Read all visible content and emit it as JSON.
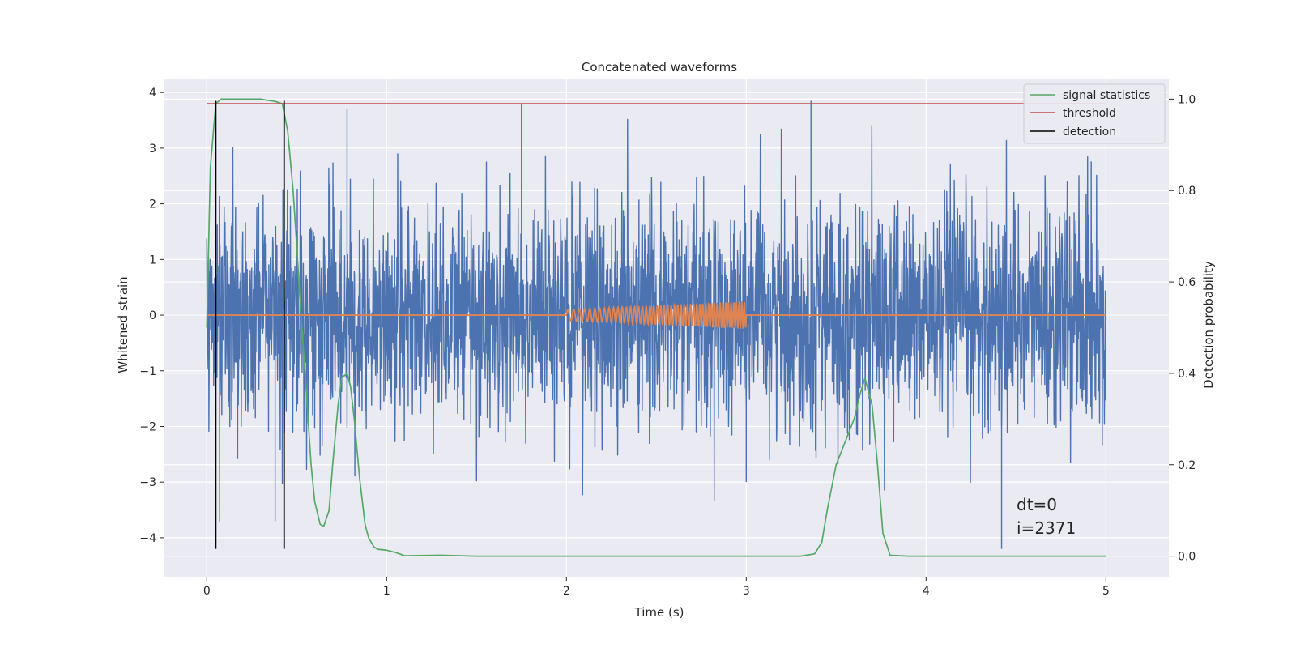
{
  "chart_data": {
    "type": "line",
    "title": "Concatenated waveforms",
    "xlabel": "Time (s)",
    "ylabel_left": "Whitened strain",
    "ylabel_right": "Detection probability",
    "xlim": [
      -0.24,
      5.35
    ],
    "ylim_left": [
      -4.7,
      4.25
    ],
    "ylim_right": [
      -0.045,
      1.045
    ],
    "xticks": [
      0,
      1,
      2,
      3,
      4,
      5
    ],
    "yticks_left": [
      -4,
      -3,
      -2,
      -1,
      0,
      1,
      2,
      3,
      4
    ],
    "yticks_right": [
      0.0,
      0.2,
      0.4,
      0.6,
      0.8,
      1.0
    ],
    "xtick_labels": [
      "0",
      "1",
      "2",
      "3",
      "4",
      "5"
    ],
    "ytick_labels_left": [
      "−4",
      "−3",
      "−2",
      "−1",
      "0",
      "1",
      "2",
      "3",
      "4"
    ],
    "ytick_labels_right": [
      "0.0",
      "0.2",
      "0.4",
      "0.6",
      "0.8",
      "1.0"
    ],
    "grid": true,
    "legend_position": "top-right",
    "colors": {
      "strain": "#4c72b0",
      "injection": "#dd8452",
      "signal_statistics": "#55a868",
      "threshold": "#c44e52",
      "detection": "#000000",
      "background": "#eaeaf2"
    },
    "series": [
      {
        "name": "signal statistics",
        "axis": "right",
        "x": [
          0.0,
          0.02,
          0.05,
          0.08,
          0.12,
          0.2,
          0.3,
          0.38,
          0.42,
          0.45,
          0.48,
          0.5,
          0.52,
          0.55,
          0.58,
          0.6,
          0.63,
          0.65,
          0.68,
          0.7,
          0.73,
          0.75,
          0.78,
          0.8,
          0.82,
          0.85,
          0.88,
          0.9,
          0.93,
          0.95,
          1.0,
          1.05,
          1.1,
          1.3,
          1.5,
          2.0,
          2.5,
          3.0,
          3.3,
          3.38,
          3.42,
          3.45,
          3.5,
          3.55,
          3.6,
          3.63,
          3.66,
          3.7,
          3.73,
          3.76,
          3.8,
          3.9,
          4.0,
          4.5,
          5.0
        ],
        "y": [
          0.5,
          0.85,
          0.99,
          1.0,
          1.0,
          1.0,
          1.0,
          0.995,
          0.99,
          0.93,
          0.8,
          0.68,
          0.55,
          0.38,
          0.2,
          0.12,
          0.07,
          0.065,
          0.1,
          0.2,
          0.33,
          0.39,
          0.4,
          0.37,
          0.3,
          0.17,
          0.07,
          0.04,
          0.02,
          0.015,
          0.013,
          0.008,
          0.001,
          0.002,
          0.0,
          0.0,
          0.0,
          0.0,
          0.0,
          0.005,
          0.03,
          0.1,
          0.2,
          0.25,
          0.3,
          0.35,
          0.39,
          0.33,
          0.2,
          0.05,
          0.002,
          0.0,
          0.0,
          0.0,
          0.0
        ]
      },
      {
        "name": "threshold",
        "axis": "right",
        "x": [
          0.0,
          5.0
        ],
        "y": [
          0.99,
          0.99
        ]
      },
      {
        "name": "detection",
        "axis": "left",
        "type": "vlines",
        "x": [
          0.05,
          0.43
        ],
        "y_range": [
          -4.2,
          3.85
        ]
      }
    ],
    "annotations": {
      "line1": "dt=0",
      "line2": "i=2371"
    }
  }
}
